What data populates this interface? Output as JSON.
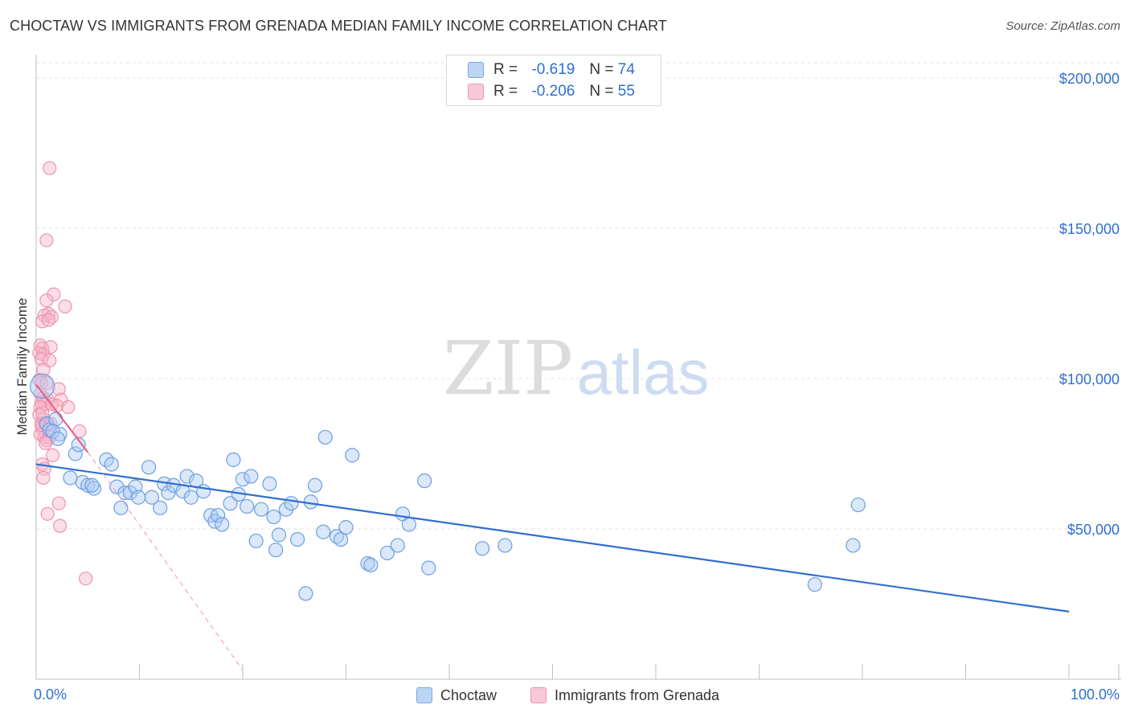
{
  "title": "CHOCTAW VS IMMIGRANTS FROM GRENADA MEDIAN FAMILY INCOME CORRELATION CHART",
  "source": "Source: ZipAtlas.com",
  "watermark": {
    "zip": "ZIP",
    "atlas": "atlas"
  },
  "legend": {
    "r_label": "R =",
    "n_label": "N =",
    "choctaw": {
      "r": "-0.619",
      "n": "74"
    },
    "grenada": {
      "r": "-0.206",
      "n": "55"
    }
  },
  "colors": {
    "blue": "#2f6fcf",
    "blue_fill": "#aecdf5",
    "pink": "#e9608a",
    "pink_fill": "#f6b6c9",
    "axis_text": "#2f6fcf"
  },
  "chart_data": {
    "type": "scatter",
    "title": "CHOCTAW VS IMMIGRANTS FROM GRENADA MEDIAN FAMILY INCOME CORRELATION CHART",
    "ylabel": "Median Family Income",
    "xlabel": "",
    "xlim": [
      0,
      100
    ],
    "ylim": [
      0,
      210000
    ],
    "x_tick_labels": {
      "left": "0.0%",
      "right": "100.0%"
    },
    "y_ticks": [
      {
        "value": 50000,
        "label": "$50,000"
      },
      {
        "value": 100000,
        "label": "$100,000"
      },
      {
        "value": 150000,
        "label": "$150,000"
      },
      {
        "value": 200000,
        "label": "$200,000"
      }
    ],
    "series": [
      {
        "name": "Choctaw",
        "color": "#2f6fcf",
        "trend": {
          "x": [
            0,
            100
          ],
          "y": [
            71500,
            22500
          ]
        },
        "points": [
          [
            0.6,
            97500
          ],
          [
            1.0,
            85000
          ],
          [
            1.3,
            83000
          ],
          [
            1.9,
            86500
          ],
          [
            2.3,
            81500
          ],
          [
            3.3,
            67000
          ],
          [
            3.8,
            75000
          ],
          [
            4.1,
            78000
          ],
          [
            4.5,
            65500
          ],
          [
            5.0,
            64500
          ],
          [
            5.6,
            63500
          ],
          [
            5.4,
            64500
          ],
          [
            6.8,
            73000
          ],
          [
            7.3,
            71500
          ],
          [
            7.8,
            64000
          ],
          [
            8.2,
            57000
          ],
          [
            8.6,
            62000
          ],
          [
            9.1,
            62000
          ],
          [
            9.6,
            64000
          ],
          [
            9.9,
            60500
          ],
          [
            10.9,
            70500
          ],
          [
            11.2,
            60500
          ],
          [
            12.0,
            57000
          ],
          [
            12.4,
            65000
          ],
          [
            12.8,
            62000
          ],
          [
            13.3,
            64500
          ],
          [
            14.2,
            62500
          ],
          [
            14.6,
            67500
          ],
          [
            15.0,
            60500
          ],
          [
            15.5,
            66000
          ],
          [
            16.2,
            62500
          ],
          [
            16.9,
            54500
          ],
          [
            17.3,
            52500
          ],
          [
            17.6,
            54500
          ],
          [
            18.0,
            51500
          ],
          [
            18.8,
            58500
          ],
          [
            19.1,
            73000
          ],
          [
            19.6,
            61500
          ],
          [
            20.0,
            66500
          ],
          [
            20.4,
            57500
          ],
          [
            20.8,
            67500
          ],
          [
            21.3,
            46000
          ],
          [
            21.8,
            56500
          ],
          [
            22.6,
            65000
          ],
          [
            23.0,
            54000
          ],
          [
            23.2,
            43000
          ],
          [
            23.5,
            48000
          ],
          [
            24.2,
            56500
          ],
          [
            24.7,
            58500
          ],
          [
            25.3,
            46500
          ],
          [
            26.1,
            28500
          ],
          [
            26.6,
            59000
          ],
          [
            27.0,
            64500
          ],
          [
            27.8,
            49000
          ],
          [
            28.0,
            80500
          ],
          [
            29.1,
            47500
          ],
          [
            29.5,
            46500
          ],
          [
            30.0,
            50500
          ],
          [
            30.6,
            74500
          ],
          [
            32.1,
            38500
          ],
          [
            32.4,
            38000
          ],
          [
            34.0,
            42000
          ],
          [
            35.0,
            44500
          ],
          [
            35.5,
            55000
          ],
          [
            36.1,
            51500
          ],
          [
            37.6,
            66000
          ],
          [
            38.0,
            37000
          ],
          [
            43.2,
            43500
          ],
          [
            45.4,
            44500
          ],
          [
            75.4,
            31500
          ],
          [
            79.1,
            44500
          ],
          [
            79.6,
            58000
          ],
          [
            1.6,
            82500
          ],
          [
            2.1,
            80000
          ]
        ]
      },
      {
        "name": "Immigrants from Grenada",
        "color": "#e9608a",
        "trend": {
          "x": [
            0,
            5.0
          ],
          "y": [
            98000,
            75500
          ]
        },
        "trend_dashed": {
          "x": [
            5.0,
            20.0
          ],
          "y": [
            75500,
            3000
          ]
        },
        "points": [
          [
            1.3,
            170000
          ],
          [
            1.0,
            146000
          ],
          [
            1.7,
            128000
          ],
          [
            2.8,
            124000
          ],
          [
            1.0,
            126000
          ],
          [
            1.2,
            121500
          ],
          [
            0.8,
            121000
          ],
          [
            1.5,
            120500
          ],
          [
            0.6,
            119000
          ],
          [
            1.2,
            119500
          ],
          [
            0.4,
            111000
          ],
          [
            0.6,
            110000
          ],
          [
            1.4,
            110500
          ],
          [
            0.3,
            108500
          ],
          [
            0.7,
            108000
          ],
          [
            0.5,
            106500
          ],
          [
            1.3,
            106000
          ],
          [
            0.7,
            103000
          ],
          [
            0.3,
            99500
          ],
          [
            0.5,
            98500
          ],
          [
            2.2,
            96500
          ],
          [
            0.4,
            95000
          ],
          [
            0.7,
            93500
          ],
          [
            1.1,
            93000
          ],
          [
            2.4,
            93000
          ],
          [
            0.5,
            92000
          ],
          [
            0.8,
            91500
          ],
          [
            1.5,
            91500
          ],
          [
            0.4,
            90500
          ],
          [
            2.0,
            91000
          ],
          [
            3.1,
            90500
          ],
          [
            0.7,
            86500
          ],
          [
            0.5,
            85000
          ],
          [
            0.9,
            84000
          ],
          [
            1.2,
            84500
          ],
          [
            0.6,
            83500
          ],
          [
            4.2,
            82500
          ],
          [
            0.4,
            81500
          ],
          [
            0.8,
            80500
          ],
          [
            1.3,
            80500
          ],
          [
            1.0,
            79500
          ],
          [
            1.6,
            74500
          ],
          [
            0.6,
            71500
          ],
          [
            0.8,
            70000
          ],
          [
            0.7,
            67000
          ],
          [
            1.1,
            55000
          ],
          [
            2.2,
            58500
          ],
          [
            2.3,
            51000
          ],
          [
            4.8,
            33500
          ],
          [
            0.5,
            84500
          ],
          [
            0.9,
            78500
          ],
          [
            1.4,
            85000
          ],
          [
            0.3,
            88000
          ],
          [
            1.0,
            98500
          ],
          [
            0.6,
            88500
          ]
        ]
      }
    ]
  }
}
